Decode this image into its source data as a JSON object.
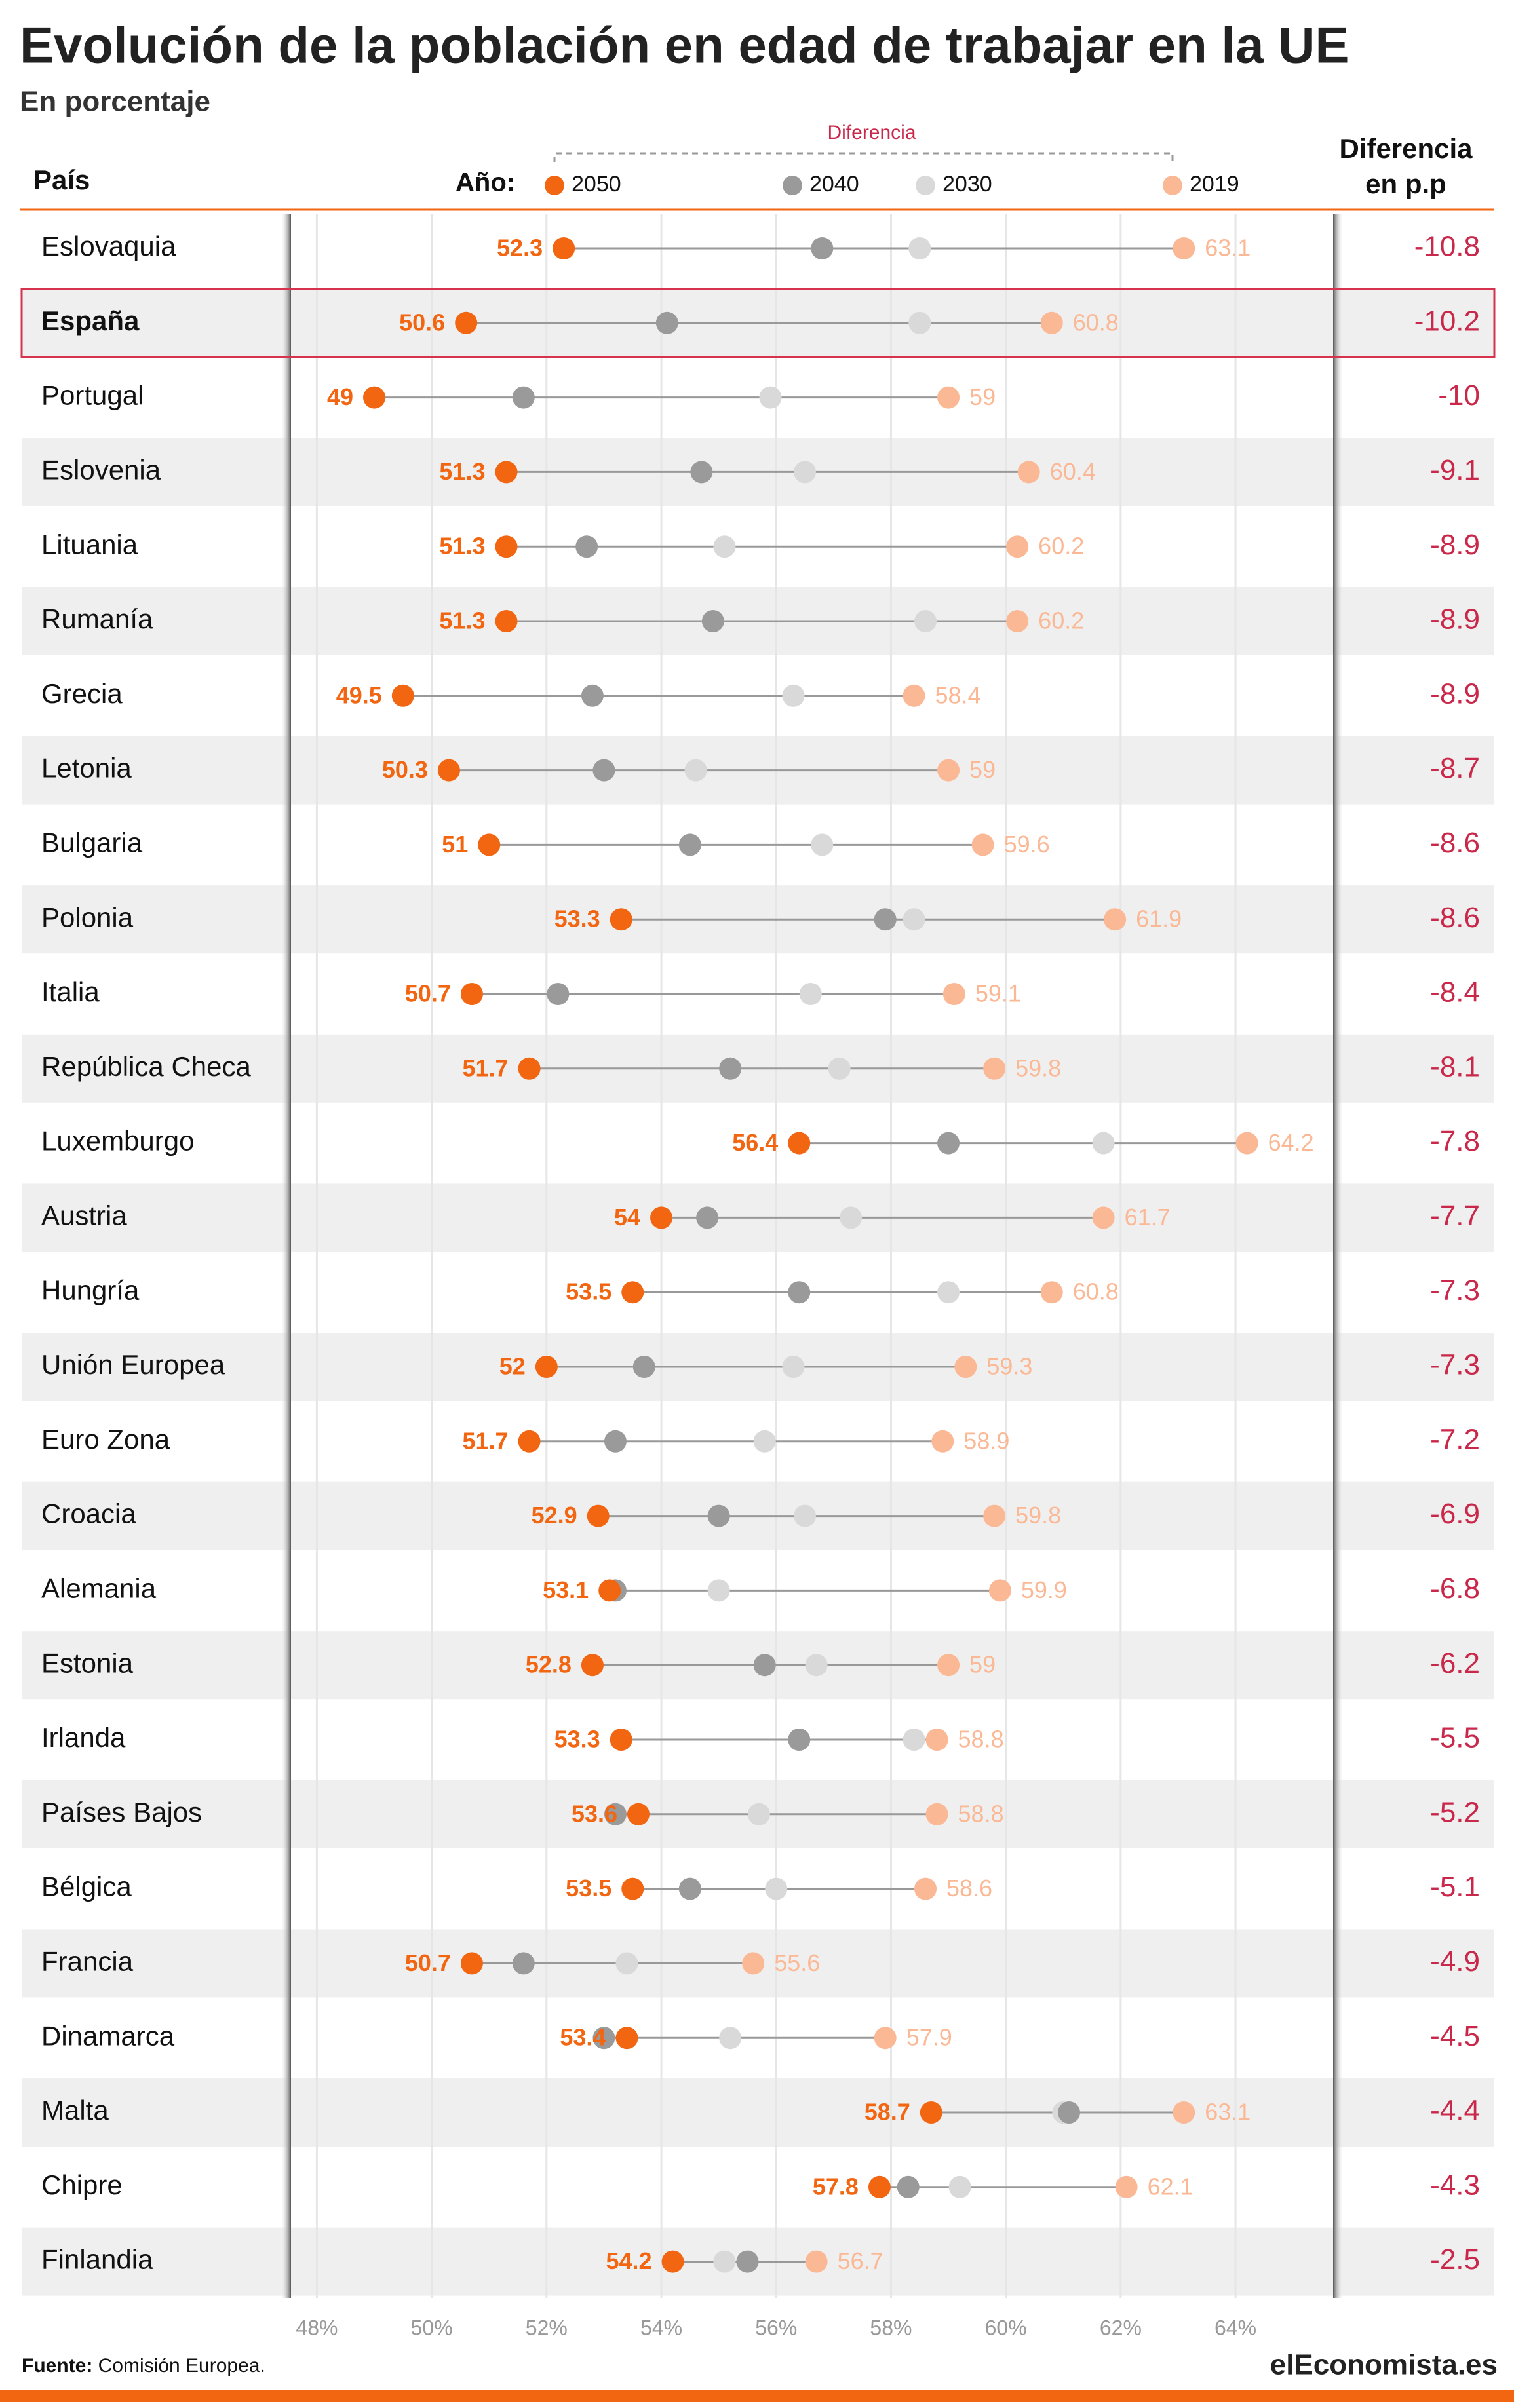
{
  "chart_data": {
    "type": "dot",
    "title": "Evolución de la población en edad de trabajar en la UE",
    "subtitle": "En porcentaje",
    "category_header": "País",
    "legend_title": "Año:",
    "bracket_label": "Diferencia",
    "difference_header": "Diferencia en p.p",
    "source_label": "Fuente:",
    "source": "Comisión Europea.",
    "logo": "elEconomista.es",
    "highlight": "España",
    "categories": [
      "Eslovaquia",
      "España",
      "Portugal",
      "Eslovenia",
      "Lituania",
      "Rumanía",
      "Grecia",
      "Letonia",
      "Bulgaria",
      "Polonia",
      "Italia",
      "República Checa",
      "Luxemburgo",
      "Austria",
      "Hungría",
      "Unión Europea",
      "Euro Zona",
      "Croacia",
      "Alemania",
      "Estonia",
      "Irlanda",
      "Países Bajos",
      "Bélgica",
      "Francia",
      "Dinamarca",
      "Malta",
      "Chipre",
      "Finlandia"
    ],
    "series": [
      {
        "name": "2050",
        "color": "#f26511",
        "values": [
          52.3,
          50.6,
          49,
          51.3,
          51.3,
          51.3,
          49.5,
          50.3,
          51,
          53.3,
          50.7,
          51.7,
          56.4,
          54,
          53.5,
          52,
          51.7,
          52.9,
          53.1,
          52.8,
          53.3,
          53.6,
          53.5,
          50.7,
          53.4,
          58.7,
          57.8,
          54.2
        ]
      },
      {
        "name": "2040",
        "color": "#9a9a9a",
        "values": [
          56.8,
          54.1,
          51.6,
          54.7,
          52.7,
          54.9,
          52.8,
          53.0,
          54.5,
          57.9,
          52.2,
          55.2,
          59.0,
          54.8,
          56.4,
          53.7,
          53.2,
          55.0,
          53.2,
          55.8,
          56.4,
          53.2,
          54.5,
          51.6,
          53.0,
          61.1,
          58.3,
          55.5
        ]
      },
      {
        "name": "2030",
        "color": "#d9d9d9",
        "values": [
          58.5,
          58.5,
          55.9,
          56.5,
          55.1,
          58.6,
          56.3,
          54.6,
          56.8,
          58.4,
          56.6,
          57.1,
          61.7,
          57.3,
          59.0,
          56.3,
          55.8,
          56.5,
          55.0,
          56.7,
          58.4,
          55.7,
          56.0,
          53.4,
          55.2,
          61.0,
          59.2,
          55.1
        ]
      },
      {
        "name": "2019",
        "color": "#fbb895",
        "values": [
          63.1,
          60.8,
          59,
          60.4,
          60.2,
          60.2,
          58.4,
          59,
          59.6,
          61.9,
          59.1,
          59.8,
          64.2,
          61.7,
          60.8,
          59.3,
          58.9,
          59.8,
          59.9,
          59,
          58.8,
          58.8,
          58.6,
          55.6,
          57.9,
          63.1,
          62.1,
          56.7
        ]
      }
    ],
    "differences": [
      -10.8,
      -10.2,
      -10,
      -9.1,
      -8.9,
      -8.9,
      -8.9,
      -8.7,
      -8.6,
      -8.6,
      -8.4,
      -8.1,
      -7.8,
      -7.7,
      -7.3,
      -7.3,
      -7.2,
      -6.9,
      -6.8,
      -6.2,
      -5.5,
      -5.2,
      -5.1,
      -4.9,
      -4.5,
      -4.4,
      -4.3,
      -2.5
    ],
    "xlim": [
      47.55,
      65.7
    ],
    "xticks": [
      {
        "value": 48,
        "label": "48%"
      },
      {
        "value": 50,
        "label": "50%"
      },
      {
        "value": 52,
        "label": "52%"
      },
      {
        "value": 54,
        "label": "54%"
      },
      {
        "value": 56,
        "label": "56%"
      },
      {
        "value": 58,
        "label": "58%"
      },
      {
        "value": 60,
        "label": "60%"
      },
      {
        "value": 62,
        "label": "62%"
      },
      {
        "value": 64,
        "label": "64%"
      }
    ],
    "grid": true,
    "difference_color": "#c9284a"
  }
}
